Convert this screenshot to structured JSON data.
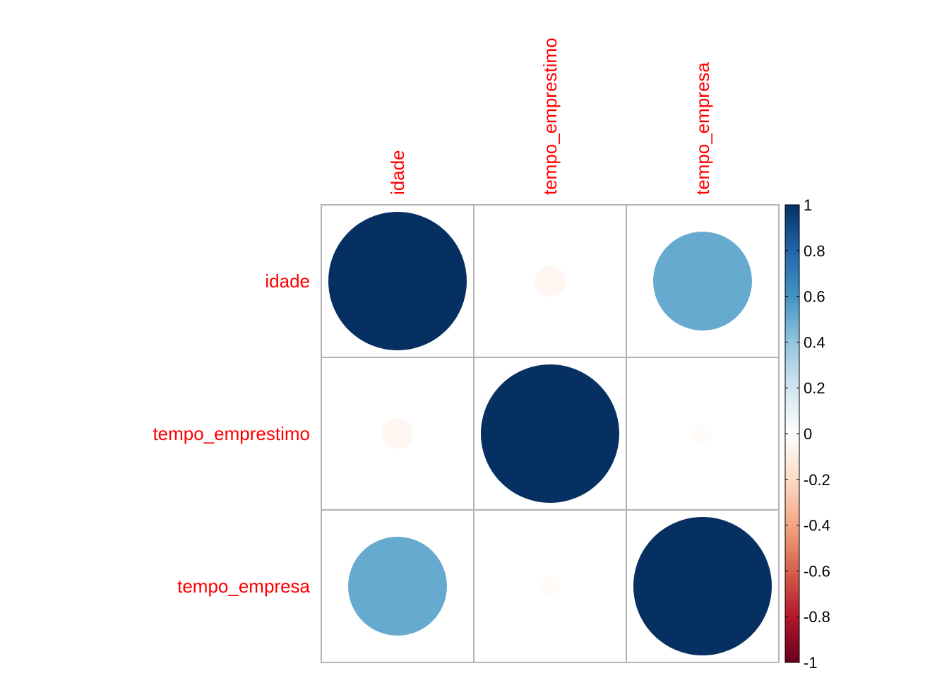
{
  "chart_data": {
    "type": "heatmap",
    "variables": [
      "idade",
      "tempo_emprestimo",
      "tempo_empresa"
    ],
    "matrix": [
      [
        1.0,
        -0.05,
        0.51
      ],
      [
        -0.05,
        1.0,
        -0.02
      ],
      [
        0.51,
        -0.02,
        1.0
      ]
    ],
    "colorbar": {
      "range": [
        -1,
        1
      ],
      "ticks": [
        "1",
        "0.8",
        "0.6",
        "0.4",
        "0.2",
        "0",
        "-0.2",
        "-0.4",
        "-0.6",
        "-0.8",
        "-1"
      ]
    },
    "label_color": "#ff0000",
    "grid_color": "#b3b3b3"
  }
}
